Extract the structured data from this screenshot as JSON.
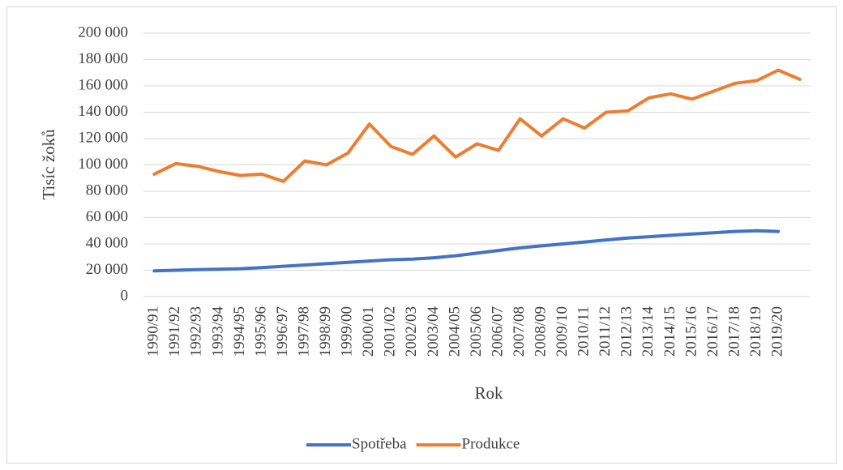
{
  "chart_data": {
    "type": "line",
    "x_label": "Rok",
    "y_label": "Tisíc žoků",
    "categories": [
      "1990/91",
      "1991/92",
      "1992/93",
      "1993/94",
      "1994/95",
      "1995/96",
      "1996/97",
      "1997/98",
      "1998/99",
      "1999/00",
      "2000/01",
      "2001/02",
      "2002/03",
      "2003/04",
      "2004/05",
      "2005/06",
      "2006/07",
      "2007/08",
      "2008/09",
      "2009/10",
      "2010/11",
      "2011/12",
      "2012/13",
      "2013/14",
      "2014/15",
      "2015/16",
      "2016/17",
      "2017/18",
      "2018/19",
      "2019/20",
      null
    ],
    "series": [
      {
        "name": "Spotřeba",
        "color": "#4472c4",
        "values": [
          19500,
          20000,
          20500,
          20800,
          21200,
          22000,
          23000,
          24000,
          25000,
          26000,
          27000,
          28000,
          28500,
          29500,
          31000,
          33000,
          35000,
          37000,
          38500,
          40000,
          41500,
          43000,
          44500,
          45500,
          46500,
          47500,
          48500,
          49500,
          50000,
          49500,
          null
        ]
      },
      {
        "name": "Produkce",
        "color": "#ed7d31",
        "values": [
          93000,
          101000,
          99000,
          95000,
          92000,
          93000,
          87500,
          103000,
          100000,
          109000,
          131000,
          114000,
          108000,
          122000,
          106000,
          116000,
          111000,
          135000,
          122000,
          135000,
          128000,
          140000,
          141000,
          151000,
          154000,
          150000,
          156000,
          162000,
          164000,
          172000,
          165000
        ]
      }
    ],
    "ylim": [
      0,
      200000
    ],
    "yticks": [
      {
        "value": 0,
        "label": "0"
      },
      {
        "value": 20000,
        "label": "20 000"
      },
      {
        "value": 40000,
        "label": "40 000"
      },
      {
        "value": 60000,
        "label": "60 000"
      },
      {
        "value": 80000,
        "label": "80 000"
      },
      {
        "value": 100000,
        "label": "100 000"
      },
      {
        "value": 120000,
        "label": "120 000"
      },
      {
        "value": 140000,
        "label": "140 000"
      },
      {
        "value": 160000,
        "label": "160 000"
      },
      {
        "value": 180000,
        "label": "180 000"
      },
      {
        "value": 200000,
        "label": "200 000"
      }
    ],
    "grid": true,
    "legend": "bottom"
  }
}
